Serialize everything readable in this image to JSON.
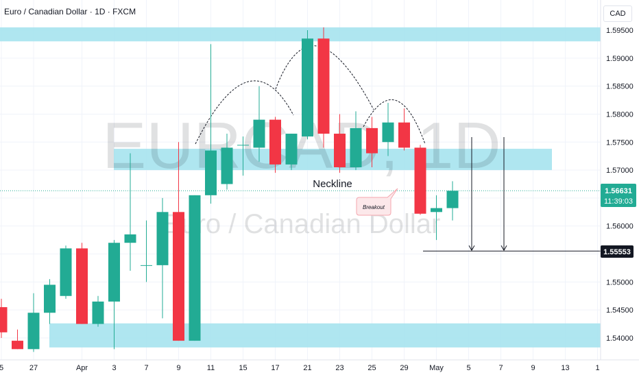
{
  "header": {
    "title": "Euro / Canadian Dollar · 1D · FXCM",
    "currency": "CAD"
  },
  "watermark": {
    "symbol": "EURCAD, 1D",
    "name": "Euro / Canadian Dollar"
  },
  "annotations": {
    "neckline": "Neckline",
    "breakout": "Breakout"
  },
  "price_tags": {
    "last_price": "1.56631",
    "countdown": "11:39:03",
    "target": "1.55553"
  },
  "colors": {
    "up": "#22ab94",
    "down": "#f23645",
    "zone": "#a6e3ee",
    "grid": "#f0f3fa",
    "axis_text": "#131722"
  },
  "chart_data": {
    "type": "candlestick",
    "title": "Euro / Canadian Dollar · 1D · FXCM",
    "currency": "CAD",
    "ylim": [
      1.5375,
      1.5975
    ],
    "y_ticks": [
      "1.59500",
      "1.59000",
      "1.58500",
      "1.58000",
      "1.57500",
      "1.57000",
      "1.56500",
      "1.56000",
      "1.55500",
      "1.55000",
      "1.54500",
      "1.54000"
    ],
    "x_tick_labels": [
      {
        "label": "5",
        "bar": 0
      },
      {
        "label": "27",
        "bar": 2
      },
      {
        "label": "Apr",
        "bar": 5
      },
      {
        "label": "3",
        "bar": 7
      },
      {
        "label": "7",
        "bar": 9
      },
      {
        "label": "9",
        "bar": 11
      },
      {
        "label": "11",
        "bar": 13
      },
      {
        "label": "15",
        "bar": 15
      },
      {
        "label": "17",
        "bar": 17
      },
      {
        "label": "21",
        "bar": 19
      },
      {
        "label": "23",
        "bar": 21
      },
      {
        "label": "25",
        "bar": 23
      },
      {
        "label": "29",
        "bar": 25
      },
      {
        "label": "May",
        "bar": 27
      },
      {
        "label": "5",
        "bar": 29
      },
      {
        "label": "7",
        "bar": 31
      },
      {
        "label": "9",
        "bar": 33
      },
      {
        "label": "13",
        "bar": 35
      },
      {
        "label": "1",
        "bar": 37
      }
    ],
    "candles": [
      {
        "o": 1.5455,
        "h": 1.547,
        "l": 1.54,
        "c": 1.541
      },
      {
        "o": 1.5395,
        "h": 1.5415,
        "l": 1.538,
        "c": 1.538
      },
      {
        "o": 1.538,
        "h": 1.548,
        "l": 1.5375,
        "c": 1.5445
      },
      {
        "o": 1.5445,
        "h": 1.5505,
        "l": 1.5425,
        "c": 1.5495
      },
      {
        "o": 1.5475,
        "h": 1.5565,
        "l": 1.547,
        "c": 1.556
      },
      {
        "o": 1.556,
        "h": 1.557,
        "l": 1.5425,
        "c": 1.5425
      },
      {
        "o": 1.5425,
        "h": 1.5475,
        "l": 1.542,
        "c": 1.5465
      },
      {
        "o": 1.5465,
        "h": 1.5575,
        "l": 1.538,
        "c": 1.557
      },
      {
        "o": 1.557,
        "h": 1.573,
        "l": 1.552,
        "c": 1.5585
      },
      {
        "o": 1.553,
        "h": 1.561,
        "l": 1.55,
        "c": 1.553
      },
      {
        "o": 1.553,
        "h": 1.565,
        "l": 1.5435,
        "c": 1.5625
      },
      {
        "o": 1.5625,
        "h": 1.575,
        "l": 1.5395,
        "c": 1.5395
      },
      {
        "o": 1.5395,
        "h": 1.5655,
        "l": 1.5395,
        "c": 1.5655
      },
      {
        "o": 1.5655,
        "h": 1.5925,
        "l": 1.564,
        "c": 1.5735
      },
      {
        "o": 1.5675,
        "h": 1.5765,
        "l": 1.5665,
        "c": 1.574
      },
      {
        "o": 1.5745,
        "h": 1.576,
        "l": 1.569,
        "c": 1.5745
      },
      {
        "o": 1.574,
        "h": 1.585,
        "l": 1.5715,
        "c": 1.579
      },
      {
        "o": 1.579,
        "h": 1.5795,
        "l": 1.5695,
        "c": 1.571
      },
      {
        "o": 1.571,
        "h": 1.5765,
        "l": 1.57,
        "c": 1.5765
      },
      {
        "o": 1.576,
        "h": 1.595,
        "l": 1.5755,
        "c": 1.5935
      },
      {
        "o": 1.5935,
        "h": 1.5955,
        "l": 1.574,
        "c": 1.5765
      },
      {
        "o": 1.5765,
        "h": 1.58,
        "l": 1.5695,
        "c": 1.5705
      },
      {
        "o": 1.5705,
        "h": 1.5805,
        "l": 1.57,
        "c": 1.5775
      },
      {
        "o": 1.5775,
        "h": 1.5795,
        "l": 1.5705,
        "c": 1.573
      },
      {
        "o": 1.575,
        "h": 1.582,
        "l": 1.5725,
        "c": 1.5785
      },
      {
        "o": 1.5785,
        "h": 1.581,
        "l": 1.5735,
        "c": 1.574
      },
      {
        "o": 1.574,
        "h": 1.5745,
        "l": 1.562,
        "c": 1.5622
      },
      {
        "o": 1.5625,
        "h": 1.5655,
        "l": 1.5575,
        "c": 1.5632
      },
      {
        "o": 1.5632,
        "h": 1.568,
        "l": 1.561,
        "c": 1.5663
      }
    ],
    "support_resistance_zones": [
      {
        "from": 1.593,
        "to": 1.5955
      },
      {
        "from": 1.57,
        "to": 1.5738
      },
      {
        "from": 1.5383,
        "to": 1.5426
      }
    ],
    "target_price": 1.55553,
    "last_price": 1.56631
  }
}
